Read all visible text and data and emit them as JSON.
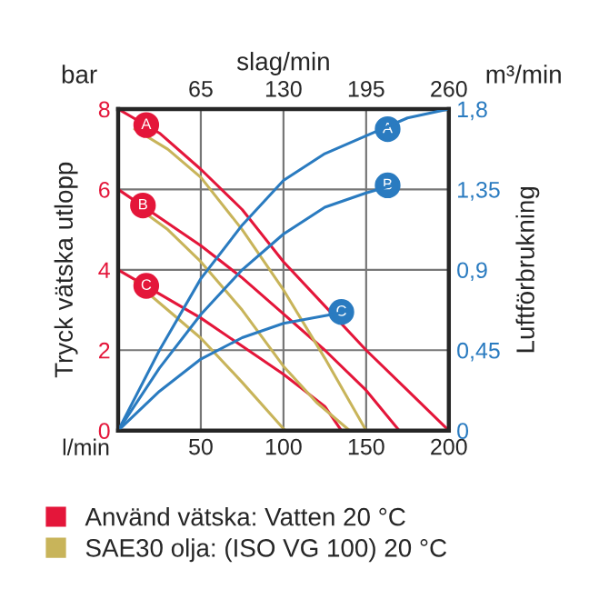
{
  "chart_data": {
    "type": "line",
    "xlabel": "l/min",
    "ylabel": "Tryck vätska utlopp",
    "y2label": "Luftförbrukning",
    "x2label": "slag/min",
    "xlim": [
      0,
      200
    ],
    "xticks": [
      {
        "value": 0,
        "label": null
      },
      50,
      100,
      150,
      200
    ],
    "ylim": [
      0,
      8
    ],
    "yticks": [
      0,
      2,
      4,
      6,
      8
    ],
    "y2lim": [
      0,
      1.8
    ],
    "y2ticks": [
      {
        "value": 0,
        "label": "0"
      },
      {
        "value": 0.45,
        "label": "0,45"
      },
      {
        "value": 0.9,
        "label": "0,9"
      },
      {
        "value": 1.35,
        "label": "1,35"
      },
      {
        "value": 1.8,
        "label": "1,8"
      }
    ],
    "x2lim": [
      0,
      260
    ],
    "x2ticks": [
      65,
      130,
      195,
      260
    ],
    "grid": true,
    "legend": "bottom",
    "marker": "none",
    "line_style": "solid",
    "series": [
      {
        "name": "Använd vätska: Vatten 20 °C",
        "color": "#e4163a",
        "x": [
          0,
          25,
          50,
          75,
          100,
          125,
          150,
          175,
          200
        ],
        "values": [
          8,
          7.4,
          6.5,
          5.5,
          4.2,
          3.1,
          2.0,
          1.0,
          0
        ]
      },
      {
        "color": "#e4163a",
        "x": [
          0,
          25,
          50,
          75,
          100,
          125,
          150,
          170
        ],
        "values": [
          6,
          5.3,
          4.6,
          3.8,
          2.9,
          2.0,
          1.0,
          0
        ]
      },
      {
        "color": "#e4163a",
        "x": [
          0,
          25,
          50,
          75,
          100,
          125,
          135
        ],
        "values": [
          4,
          3.4,
          2.8,
          2.1,
          1.4,
          0.6,
          0
        ]
      },
      {
        "name": "SAE30 olja: (ISO VG 100) 20 °C",
        "color": "#c8b45a",
        "x": [
          10,
          30,
          50,
          75,
          100,
          125,
          150
        ],
        "values": [
          7.5,
          7.0,
          6.3,
          5.0,
          3.5,
          1.8,
          0
        ]
      },
      {
        "color": "#c8b45a",
        "x": [
          10,
          30,
          50,
          75,
          100,
          120,
          140
        ],
        "values": [
          5.6,
          5.0,
          4.2,
          3.0,
          1.6,
          0.7,
          0
        ]
      },
      {
        "color": "#c8b45a",
        "x": [
          10,
          30,
          50,
          75,
          101
        ],
        "values": [
          3.7,
          3.0,
          2.3,
          1.2,
          0
        ]
      },
      {
        "color": "#2a7bc0",
        "axis": "y2",
        "x": [
          0,
          25,
          50,
          75,
          100,
          125,
          150,
          175,
          200
        ],
        "values": [
          0,
          0.45,
          0.85,
          1.15,
          1.4,
          1.55,
          1.65,
          1.75,
          1.8
        ]
      },
      {
        "color": "#2a7bc0",
        "axis": "y2",
        "x": [
          0,
          25,
          50,
          75,
          100,
          125,
          150,
          165
        ],
        "values": [
          0,
          0.35,
          0.65,
          0.9,
          1.1,
          1.25,
          1.33,
          1.37
        ]
      },
      {
        "color": "#2a7bc0",
        "axis": "y2",
        "x": [
          0,
          25,
          50,
          75,
          100,
          135
        ],
        "values": [
          0,
          0.22,
          0.4,
          0.52,
          0.6,
          0.66
        ]
      }
    ],
    "annotations": [
      "bar",
      "m³/min",
      {
        "text": "A",
        "x": 17,
        "y": 7.6
      },
      {
        "text": "B",
        "x": 15,
        "y": 5.6
      },
      {
        "text": "C",
        "x": 17,
        "y": 3.6
      },
      {
        "text": "A",
        "x": 163,
        "y": 7.5
      },
      {
        "text": "B",
        "x": 163,
        "y": 6.1
      },
      {
        "text": "C",
        "x": 135,
        "y": 2.95
      }
    ]
  }
}
